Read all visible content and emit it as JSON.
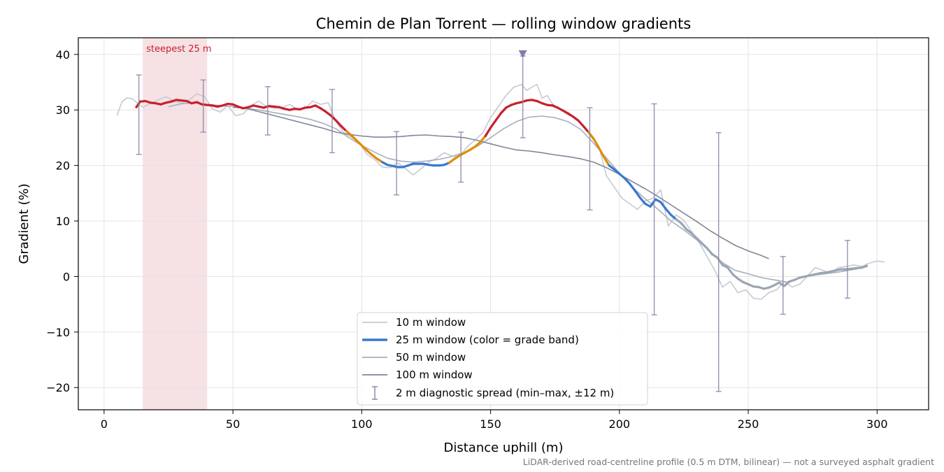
{
  "chart_data": {
    "type": "line",
    "title": "Chemin de Plan Torrent — rolling window gradients",
    "xlabel": "Distance uphill (m)",
    "ylabel": "Gradient (%)",
    "xlim": [
      -10,
      320
    ],
    "ylim": [
      -24,
      43
    ],
    "xticks": [
      0,
      50,
      100,
      150,
      200,
      250,
      300
    ],
    "xtick_labels": [
      "0",
      "50",
      "100",
      "150",
      "200",
      "250",
      "300"
    ],
    "yticks": [
      -20,
      -10,
      0,
      10,
      20,
      30,
      40
    ],
    "ytick_labels": [
      "−20",
      "−10",
      "0",
      "10",
      "20",
      "30",
      "40"
    ],
    "grid": true,
    "legend_position": "lower-center",
    "footnote": "LiDAR-derived road-centreline profile (0.5 m DTM, bilinear) — not a surveyed asphalt gradient",
    "highlight": {
      "label": "steepest 25 m",
      "x_start": 15,
      "x_end": 40,
      "color": "#e8b4bc"
    },
    "peak_marker": {
      "x": 162.5,
      "y": 40,
      "color": "#8a78a8"
    },
    "grade_band_colors": {
      "steep": "#c8202e",
      "moderate": "#e08c00",
      "easy": "#3a78d0",
      "flat": "#9ba6b3"
    },
    "series": [
      {
        "name": "10 m window",
        "color": "#c5cad3",
        "x": [
          5,
          7,
          9,
          11,
          13,
          15,
          18,
          21,
          24,
          27,
          30,
          33,
          36,
          39,
          42,
          45,
          48,
          51,
          54,
          57,
          60,
          63,
          66,
          69,
          72,
          75,
          78,
          81,
          84,
          87,
          90,
          93,
          96,
          99,
          102,
          105,
          108,
          111,
          114,
          117,
          120,
          123,
          126,
          129,
          132,
          135,
          138,
          141,
          144,
          147,
          150,
          153,
          156,
          159,
          162,
          164,
          166,
          168,
          170,
          172,
          174,
          177,
          180,
          183,
          186,
          189,
          192,
          195,
          198,
          201,
          204,
          207,
          210,
          213,
          216,
          219,
          222,
          225,
          228,
          231,
          234,
          237,
          240,
          243,
          246,
          249,
          252,
          255,
          258,
          261,
          264,
          267,
          270,
          273,
          276,
          279,
          282,
          285,
          288,
          291,
          294,
          297,
          300,
          303
        ],
        "y": [
          29,
          31.5,
          32.2,
          32,
          31.2,
          30.5,
          31.2,
          31.8,
          32.4,
          31.6,
          31.2,
          31.8,
          32.9,
          32.4,
          30.2,
          29.6,
          30.8,
          29,
          29.3,
          30.8,
          31.6,
          30.6,
          30.3,
          30.4,
          31,
          30.1,
          30.3,
          31.6,
          31,
          31.3,
          27.9,
          25.9,
          25.1,
          24.1,
          22,
          21.1,
          19.7,
          19.6,
          20.5,
          19.4,
          18.3,
          19.4,
          20.6,
          21.3,
          22.3,
          21.7,
          21.6,
          23.4,
          24.6,
          25.9,
          28.6,
          30.6,
          32.6,
          34.1,
          34.6,
          33.5,
          34.1,
          34.6,
          32.1,
          32.6,
          31.1,
          30.1,
          29.1,
          28.6,
          27.1,
          25.1,
          23.5,
          18.1,
          16.1,
          14.1,
          13.1,
          12.1,
          13.6,
          14.1,
          15.6,
          9.1,
          11.1,
          10.1,
          8.1,
          6.1,
          3.6,
          1.1,
          -1.9,
          -0.9,
          -2.9,
          -2.4,
          -3.9,
          -4.1,
          -2.9,
          -2.4,
          -0.9,
          -1.9,
          -1.4,
          0.1,
          1.6,
          1.1,
          0.6,
          1.6,
          1.8,
          2.1,
          1.8,
          2.4,
          2.8,
          2.6
        ]
      },
      {
        "name": "25 m window (color = grade band)",
        "color": "#3a78d0",
        "colored_by_grade_band": true,
        "x": [
          12.5,
          14,
          16,
          18,
          20,
          22,
          24,
          26,
          28,
          30,
          32,
          34,
          36,
          38,
          40,
          42,
          44,
          46,
          48,
          50,
          52,
          54,
          56,
          58,
          60,
          62,
          64,
          66,
          68,
          70,
          72,
          74,
          76,
          78,
          80,
          82,
          84,
          86,
          88,
          90,
          92,
          94,
          96,
          98,
          100,
          102,
          104,
          106,
          108,
          110,
          112,
          114,
          116,
          118,
          120,
          122,
          124,
          126,
          128,
          130,
          132,
          134,
          136,
          138,
          140,
          142,
          144,
          146,
          148,
          150,
          152,
          154,
          156,
          158,
          160,
          162,
          164,
          166,
          168,
          170,
          172,
          174,
          176,
          178,
          180,
          182,
          184,
          186,
          188,
          190,
          192,
          194,
          196,
          198,
          200,
          202,
          204,
          206,
          208,
          210,
          212,
          214,
          216,
          218,
          220,
          222,
          224,
          226,
          228,
          230,
          232,
          234,
          236,
          238,
          240,
          242,
          244,
          246,
          248,
          250,
          252,
          254,
          256,
          258,
          260,
          262,
          264,
          266,
          268,
          270,
          272,
          274,
          276,
          278,
          280,
          282,
          284,
          286,
          288,
          290,
          292,
          294,
          296
        ],
        "y": [
          30.5,
          31.5,
          31.6,
          31.3,
          31.2,
          31.0,
          31.3,
          31.5,
          31.8,
          31.7,
          31.6,
          31.2,
          31.4,
          31.0,
          30.9,
          30.8,
          30.6,
          30.8,
          31.1,
          31.0,
          30.6,
          30.3,
          30.5,
          30.8,
          30.6,
          30.4,
          30.7,
          30.6,
          30.5,
          30.2,
          30.0,
          30.2,
          30.1,
          30.4,
          30.5,
          30.8,
          30.3,
          29.7,
          29.0,
          28.1,
          27.1,
          26.2,
          25.4,
          24.5,
          23.6,
          22.7,
          21.9,
          21.2,
          20.6,
          20.1,
          19.9,
          19.7,
          19.7,
          20.0,
          20.3,
          20.3,
          20.3,
          20.1,
          20.0,
          20.0,
          20.1,
          20.5,
          21.2,
          21.8,
          22.3,
          22.8,
          23.4,
          24.2,
          25.3,
          26.8,
          28.1,
          29.4,
          30.4,
          30.9,
          31.2,
          31.4,
          31.7,
          31.8,
          31.6,
          31.2,
          30.9,
          30.8,
          30.4,
          29.9,
          29.4,
          28.8,
          28.1,
          27.1,
          26.0,
          24.8,
          23.2,
          21.5,
          20.0,
          19.3,
          18.5,
          17.7,
          16.7,
          15.5,
          14.2,
          13.1,
          12.6,
          13.9,
          13.4,
          12.2,
          11.1,
          10.3,
          9.6,
          8.5,
          7.8,
          6.9,
          6.0,
          5.1,
          4.0,
          3.4,
          2.1,
          1.6,
          0.4,
          -0.4,
          -1.0,
          -1.4,
          -1.8,
          -1.9,
          -2.2,
          -2.0,
          -1.6,
          -1.1,
          -1.7,
          -0.9,
          -0.6,
          -0.2,
          0.0,
          0.2,
          0.4,
          0.6,
          0.7,
          0.9,
          1.1,
          1.3,
          1.3,
          1.4,
          1.5,
          1.6,
          1.9
        ]
      },
      {
        "name": "50 m window",
        "color": "#a8aec0",
        "x": [
          25,
          30,
          35,
          40,
          45,
          50,
          55,
          60,
          65,
          70,
          75,
          80,
          85,
          90,
          95,
          100,
          105,
          110,
          115,
          120,
          125,
          130,
          135,
          140,
          145,
          150,
          155,
          160,
          165,
          170,
          175,
          180,
          185,
          190,
          195,
          200,
          205,
          210,
          215,
          220,
          225,
          230,
          235,
          240,
          245,
          250,
          255,
          260,
          265,
          270,
          275,
          280,
          285,
          290,
          295
        ],
        "y": [
          30.6,
          31.1,
          31.3,
          31.0,
          30.8,
          30.6,
          30.3,
          30.0,
          29.6,
          29.2,
          28.8,
          28.3,
          27.6,
          26.6,
          25.0,
          23.6,
          22.4,
          21.3,
          20.8,
          20.6,
          20.8,
          21.1,
          21.6,
          22.4,
          23.5,
          25.0,
          26.6,
          27.9,
          28.7,
          28.9,
          28.6,
          27.9,
          26.5,
          24.0,
          21.3,
          18.6,
          16.1,
          14.0,
          12.1,
          10.0,
          8.4,
          6.6,
          4.6,
          2.5,
          1.1,
          0.5,
          -0.2,
          -0.6,
          -1.0,
          -0.3,
          0.2,
          0.5,
          0.8,
          1.2,
          1.6
        ]
      },
      {
        "name": "100 m window",
        "color": "#7f8796",
        "x": [
          50,
          55,
          60,
          65,
          70,
          75,
          80,
          85,
          90,
          95,
          100,
          105,
          110,
          115,
          120,
          125,
          130,
          135,
          140,
          145,
          150,
          155,
          160,
          165,
          170,
          175,
          180,
          185,
          190,
          195,
          200,
          205,
          210,
          215,
          220,
          225,
          230,
          235,
          240,
          245,
          250,
          255,
          258
        ],
        "y": [
          30.5,
          30.3,
          29.7,
          29.1,
          28.5,
          27.9,
          27.3,
          26.7,
          26.0,
          25.6,
          25.3,
          25.1,
          25.1,
          25.2,
          25.4,
          25.5,
          25.3,
          25.2,
          25.0,
          24.5,
          23.9,
          23.3,
          22.8,
          22.6,
          22.3,
          21.9,
          21.6,
          21.2,
          20.6,
          19.6,
          18.4,
          17.1,
          15.8,
          14.4,
          12.9,
          11.4,
          9.9,
          8.3,
          6.9,
          5.6,
          4.6,
          3.8,
          3.2
        ]
      }
    ],
    "error_bars": {
      "name": "2 m diagnostic spread (min–max, ±12 m)",
      "color": "#8a88aa",
      "x": [
        13.5,
        38.5,
        63.5,
        88.5,
        113.5,
        138.5,
        162.5,
        188.5,
        213.5,
        238.5,
        263.5,
        288.5
      ],
      "y_min": [
        22,
        26,
        25.5,
        22.3,
        14.7,
        17,
        25,
        12,
        -6.9,
        -20.7,
        -6.8,
        -3.9
      ],
      "y_max": [
        36.3,
        35.4,
        34.2,
        33.7,
        26.1,
        26,
        39.7,
        30.4,
        31.1,
        25.9,
        3.6,
        6.5
      ]
    }
  }
}
